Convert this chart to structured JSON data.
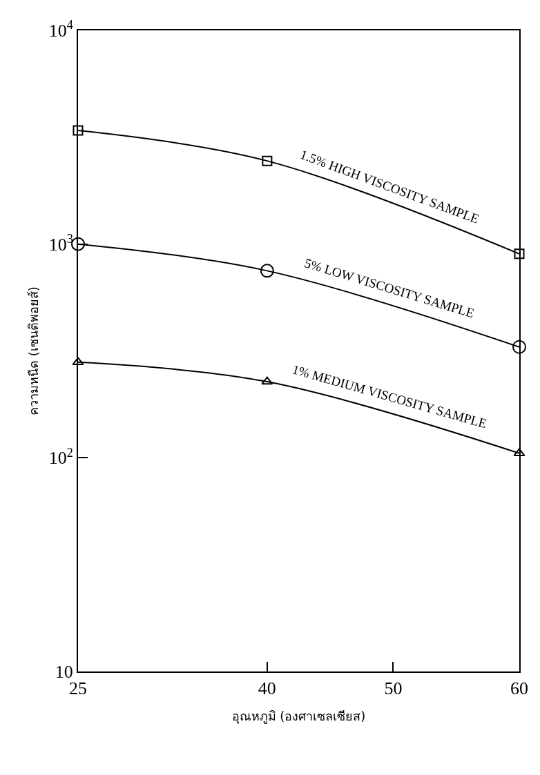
{
  "chart_data": {
    "type": "line",
    "xlabel": "อุณหภูมิ (องศาเซลเซียส)",
    "ylabel": "ความหนืด (เซนติพอยส์)",
    "x": [
      25,
      40,
      60
    ],
    "series": [
      {
        "name": "1.5% HIGH VISCOSITY SAMPLE",
        "color": "#000000",
        "marker": "square",
        "values": [
          3400,
          2450,
          900
        ]
      },
      {
        "name": "5% LOW VISCOSITY SAMPLE",
        "color": "#000000",
        "marker": "circle",
        "values": [
          1000,
          750,
          330
        ]
      },
      {
        "name": "1% MEDIUM VISCOSITY SAMPLE",
        "color": "#000000",
        "marker": "triangle",
        "values": [
          280,
          227,
          105
        ]
      }
    ],
    "log": "y",
    "xlim": [
      25,
      60
    ],
    "xticks": [
      25,
      40,
      50,
      60
    ],
    "ylim": [
      10,
      10000
    ],
    "yticks": [
      10,
      {
        "value": 100,
        "label": "10$^{2}$"
      },
      {
        "value": 1000,
        "label": "10$^{3}$"
      },
      {
        "value": 10000,
        "label": "10$^{4}$"
      }
    ],
    "legend": false,
    "line_style": "solid"
  }
}
